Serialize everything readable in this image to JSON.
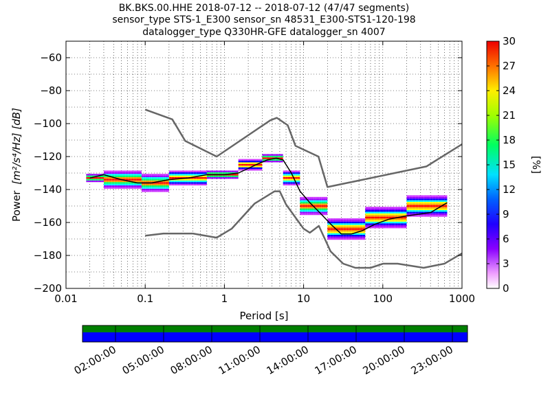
{
  "chart_data": {
    "type": "heatmap",
    "title_lines": [
      "BK.BKS.00.HHE   2018-07-12 -- 2018-07-12  (47/47 segments)",
      "sensor_type STS-1_E300 sensor_sn 48531_E300-STS1-120-198",
      "datalogger_type Q330HR-GFE datalogger_sn 4007"
    ],
    "xlabel": "Period [s]",
    "ylabel_text": "Power",
    "ylabel_units": "[m²/s⁴/Hz] [dB]",
    "x_scale": "log",
    "xlim": [
      0.01,
      1000
    ],
    "ylim": [
      -200,
      -50
    ],
    "x_ticks": [
      0.01,
      0.1,
      1,
      10,
      100,
      1000
    ],
    "x_tick_labels": [
      "0.01",
      "0.1",
      "1",
      "10",
      "100",
      "1000"
    ],
    "y_ticks": [
      -200,
      -180,
      -160,
      -140,
      -120,
      -100,
      -80,
      -60
    ],
    "y_tick_labels": [
      "−200",
      "−180",
      "−160",
      "−140",
      "−120",
      "−100",
      "−80",
      "−60"
    ],
    "grid": true,
    "colorbar": {
      "label": "[%]",
      "range": [
        0,
        30
      ],
      "ticks": [
        0,
        3,
        6,
        9,
        12,
        15,
        18,
        21,
        24,
        27,
        30
      ],
      "tick_labels": [
        "0",
        "3",
        "6",
        "9",
        "12",
        "15",
        "18",
        "21",
        "24",
        "27",
        "30"
      ]
    },
    "series": [
      {
        "role": "high-noise-model",
        "color": "#666666",
        "x": [
          0.1,
          0.22,
          0.32,
          0.8,
          3.8,
          4.6,
          6.3,
          7.9,
          15.4,
          20,
          354.8,
          1000
        ],
        "y": [
          -91.5,
          -97.4,
          -110.5,
          -120,
          -98,
          -96.5,
          -101,
          -113.5,
          -120,
          -138.5,
          -126,
          -112.5
        ]
      },
      {
        "role": "low-noise-model",
        "color": "#666666",
        "x": [
          0.1,
          0.17,
          0.4,
          0.8,
          1.24,
          2.4,
          4.3,
          5,
          6,
          10,
          12,
          15.6,
          21.9,
          31.6,
          45,
          70,
          101,
          154,
          328,
          600,
          1000
        ],
        "y": [
          -168,
          -166.7,
          -166.7,
          -169.2,
          -163.7,
          -148.6,
          -141.1,
          -141.1,
          -149,
          -163.8,
          -166.2,
          -162.1,
          -177.5,
          -185,
          -187.5,
          -187.5,
          -185,
          -185,
          -187.5,
          -185,
          -178.7
        ]
      },
      {
        "role": "mean-psd",
        "color": "#000000",
        "x": [
          0.02,
          0.03,
          0.05,
          0.08,
          0.12,
          0.2,
          0.35,
          0.6,
          1,
          1.5,
          2.5,
          3.5,
          4.5,
          5.5,
          7,
          9,
          12,
          16,
          22,
          30,
          40,
          55,
          80,
          120,
          200,
          400,
          650
        ],
        "y": [
          -133,
          -131,
          -134,
          -136,
          -136,
          -134,
          -133,
          -131,
          -131,
          -130,
          -125,
          -122,
          -121,
          -122,
          -130,
          -141,
          -148,
          -154,
          -161,
          -167,
          -167,
          -165,
          -161,
          -158,
          -156,
          -154,
          -148
        ]
      }
    ],
    "heatmap_bands": [
      {
        "x0": 0.018,
        "x1": 0.03,
        "y_center": -133,
        "spread": 2
      },
      {
        "x0": 0.03,
        "x1": 0.09,
        "y_center": -134,
        "spread": 5
      },
      {
        "x0": 0.09,
        "x1": 0.2,
        "y_center": -136,
        "spread": 5
      },
      {
        "x0": 0.2,
        "x1": 0.6,
        "y_center": -133,
        "spread": 4
      },
      {
        "x0": 0.6,
        "x1": 1.5,
        "y_center": -131,
        "spread": 2
      },
      {
        "x0": 1.5,
        "x1": 3,
        "y_center": -125,
        "spread": 3
      },
      {
        "x0": 3,
        "x1": 5.5,
        "y_center": -121,
        "spread": 2
      },
      {
        "x0": 5.5,
        "x1": 9,
        "y_center": -133,
        "spread": 4
      },
      {
        "x0": 9,
        "x1": 20,
        "y_center": -150,
        "spread": 5
      },
      {
        "x0": 20,
        "x1": 60,
        "y_center": -164,
        "spread": 6
      },
      {
        "x0": 60,
        "x1": 200,
        "y_center": -157,
        "spread": 6
      },
      {
        "x0": 200,
        "x1": 650,
        "y_center": -150,
        "spread": 6
      }
    ],
    "timeline": {
      "tick_labels": [
        "02:00:00",
        "05:00:00",
        "08:00:00",
        "11:00:00",
        "14:00:00",
        "17:00:00",
        "20:00:00",
        "23:00:00"
      ],
      "top_band_color": "#007f00",
      "bottom_band_color": "#0000ff"
    }
  }
}
